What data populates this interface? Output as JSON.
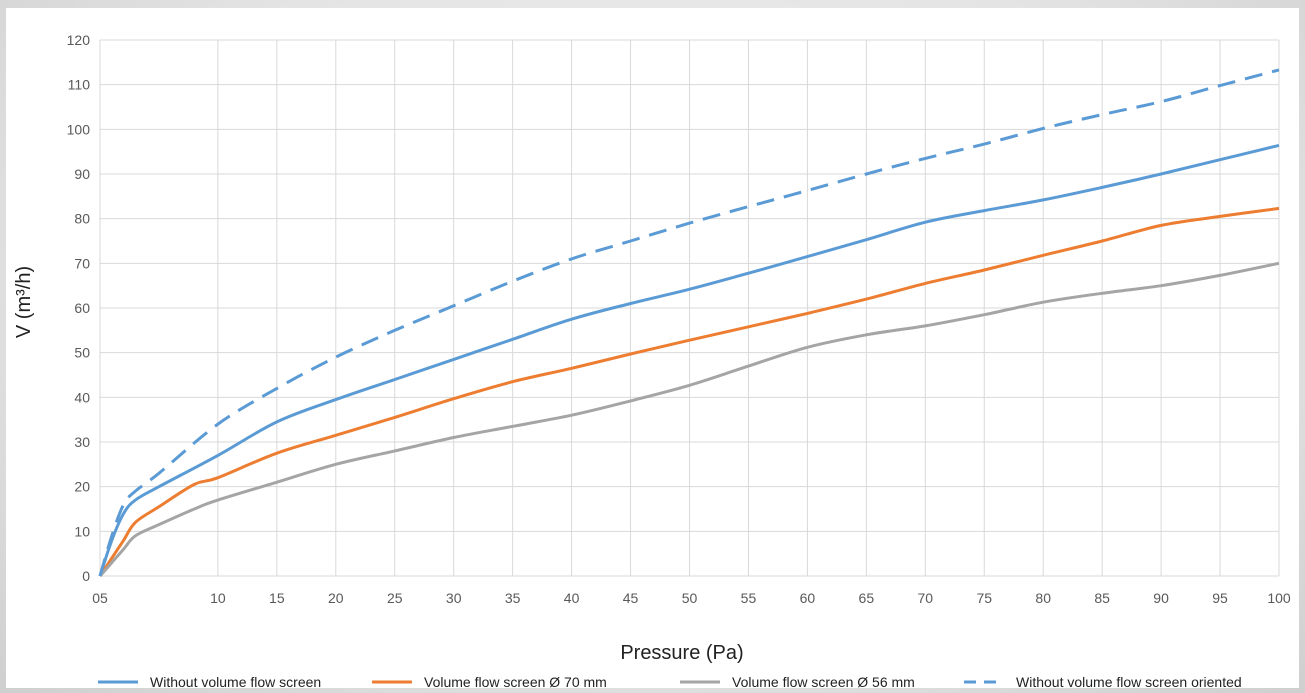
{
  "chart_data": {
    "type": "line",
    "xlabel": "Pressure (Pa)",
    "ylabel": "V (m³/h)",
    "ylim": [
      0,
      120
    ],
    "y_ticks": [
      0,
      10,
      20,
      30,
      40,
      50,
      60,
      70,
      80,
      90,
      100,
      110,
      120
    ],
    "x_tick_labels": [
      "05",
      "10",
      "15",
      "20",
      "25",
      "30",
      "35",
      "40",
      "45",
      "50",
      "55",
      "60",
      "65",
      "70",
      "75",
      "80",
      "85",
      "90",
      "95",
      "100"
    ],
    "x_tick_values": [
      0,
      10,
      15,
      20,
      25,
      30,
      35,
      40,
      45,
      50,
      55,
      60,
      65,
      70,
      75,
      80,
      85,
      90,
      95,
      100
    ],
    "grid": true,
    "legend_position": "bottom",
    "series": [
      {
        "name": "Without volume flow screen",
        "color": "#5b9bd5",
        "dash": "solid",
        "x": [
          0,
          1,
          2,
          3,
          5,
          10,
          15,
          20,
          25,
          30,
          35,
          40,
          45,
          50,
          55,
          60,
          65,
          70,
          75,
          80,
          85,
          90,
          95,
          100
        ],
        "y": [
          0,
          8,
          14,
          17,
          20,
          27,
          34.5,
          39.5,
          44,
          48.5,
          53,
          57.5,
          61,
          64.2,
          67.8,
          71.5,
          75.3,
          79.2,
          81.8,
          84.2,
          87,
          90,
          93.2,
          96.4
        ]
      },
      {
        "name": "Volume flow screen Ø 70 mm",
        "color": "#ed7d31",
        "dash": "solid",
        "x": [
          0,
          1,
          2,
          3,
          5,
          8,
          10,
          15,
          20,
          25,
          30,
          35,
          40,
          45,
          50,
          55,
          60,
          65,
          70,
          75,
          80,
          85,
          90,
          95,
          100
        ],
        "y": [
          0,
          4,
          8,
          12,
          15.5,
          20.5,
          22,
          27.5,
          31.5,
          35.5,
          39.7,
          43.5,
          46.5,
          49.7,
          52.8,
          55.8,
          58.8,
          62,
          65.5,
          68.5,
          71.8,
          75,
          78.5,
          80.5,
          82.3
        ]
      },
      {
        "name": "Volume flow screen Ø 56 mm",
        "color": "#a5a5a5",
        "dash": "solid",
        "x": [
          0,
          1,
          2,
          3,
          5,
          8,
          10,
          15,
          20,
          25,
          30,
          35,
          40,
          45,
          50,
          55,
          60,
          65,
          70,
          75,
          80,
          85,
          90,
          95,
          100
        ],
        "y": [
          0,
          3,
          6,
          9,
          11.5,
          15,
          17,
          21,
          25,
          28,
          31,
          33.5,
          36,
          39.2,
          42.7,
          47,
          51.2,
          54,
          56,
          58.5,
          61.3,
          63.3,
          65,
          67.3,
          70
        ]
      },
      {
        "name": "Without volume flow screen oriented",
        "color": "#5b9bd5",
        "dash": "dashed",
        "x": [
          0,
          1,
          2,
          3,
          5,
          10,
          15,
          20,
          25,
          30,
          35,
          40,
          45,
          50,
          55,
          60,
          65,
          70,
          75,
          80,
          85,
          90,
          95,
          100
        ],
        "y": [
          0,
          9,
          16,
          19,
          23,
          34,
          42,
          49,
          55,
          60.5,
          66,
          71,
          75,
          79,
          82.7,
          86.3,
          90,
          93.5,
          96.7,
          100.2,
          103.3,
          106.2,
          109.8,
          113.3
        ]
      }
    ]
  }
}
